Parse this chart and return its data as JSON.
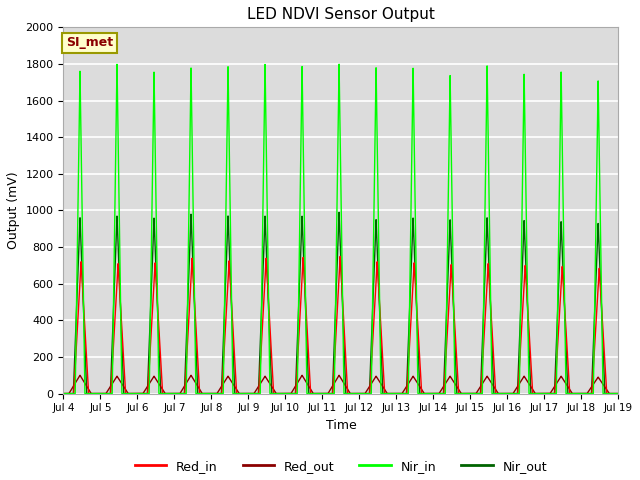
{
  "title": "LED NDVI Sensor Output",
  "xlabel": "Time",
  "ylabel": "Output (mV)",
  "ylim": [
    0,
    2000
  ],
  "xlim_days": [
    4,
    19
  ],
  "background_color": "#dcdcdc",
  "grid_color": "#ffffff",
  "annotation_text": "SI_met",
  "annotation_bg": "#ffffcc",
  "annotation_border": "#999900",
  "legend_entries": [
    "Red_in",
    "Red_out",
    "Nir_in",
    "Nir_out"
  ],
  "line_colors": [
    "#ff0000",
    "#8b0000",
    "#00ff00",
    "#006400"
  ],
  "yticks": [
    0,
    200,
    400,
    600,
    800,
    1000,
    1200,
    1400,
    1600,
    1800,
    2000
  ],
  "xtick_labels": [
    "Jul 4",
    "Jul 5",
    "Jul 6",
    "Jul 7",
    "Jul 8",
    "Jul 9",
    "Jul 10",
    "Jul 11",
    "Jul 12",
    "Jul 13",
    "Jul 14",
    "Jul 15",
    "Jul 16",
    "Jul 17",
    "Jul 18",
    "Jul 19"
  ],
  "xtick_positions": [
    4,
    5,
    6,
    7,
    8,
    9,
    10,
    11,
    12,
    13,
    14,
    15,
    16,
    17,
    18,
    19
  ],
  "nir_in_peaks": [
    1760,
    1800,
    1760,
    1780,
    1785,
    1800,
    1790,
    1800,
    1780,
    1780,
    1740,
    1790,
    1745,
    1760,
    1710
  ],
  "nir_out_peaks": [
    960,
    970,
    960,
    980,
    970,
    970,
    970,
    990,
    950,
    960,
    950,
    960,
    945,
    940,
    930
  ],
  "red_in_peaks": [
    720,
    710,
    715,
    740,
    725,
    740,
    745,
    750,
    720,
    715,
    705,
    710,
    700,
    695,
    685
  ],
  "red_out_peaks": [
    100,
    95,
    95,
    100,
    95,
    95,
    100,
    100,
    95,
    95,
    95,
    95,
    95,
    95,
    90
  ],
  "spike_centers": [
    4.45,
    5.45,
    6.45,
    7.45,
    8.45,
    9.45,
    10.45,
    11.45,
    12.45,
    13.45,
    14.45,
    15.45,
    16.45,
    17.45,
    18.45
  ]
}
